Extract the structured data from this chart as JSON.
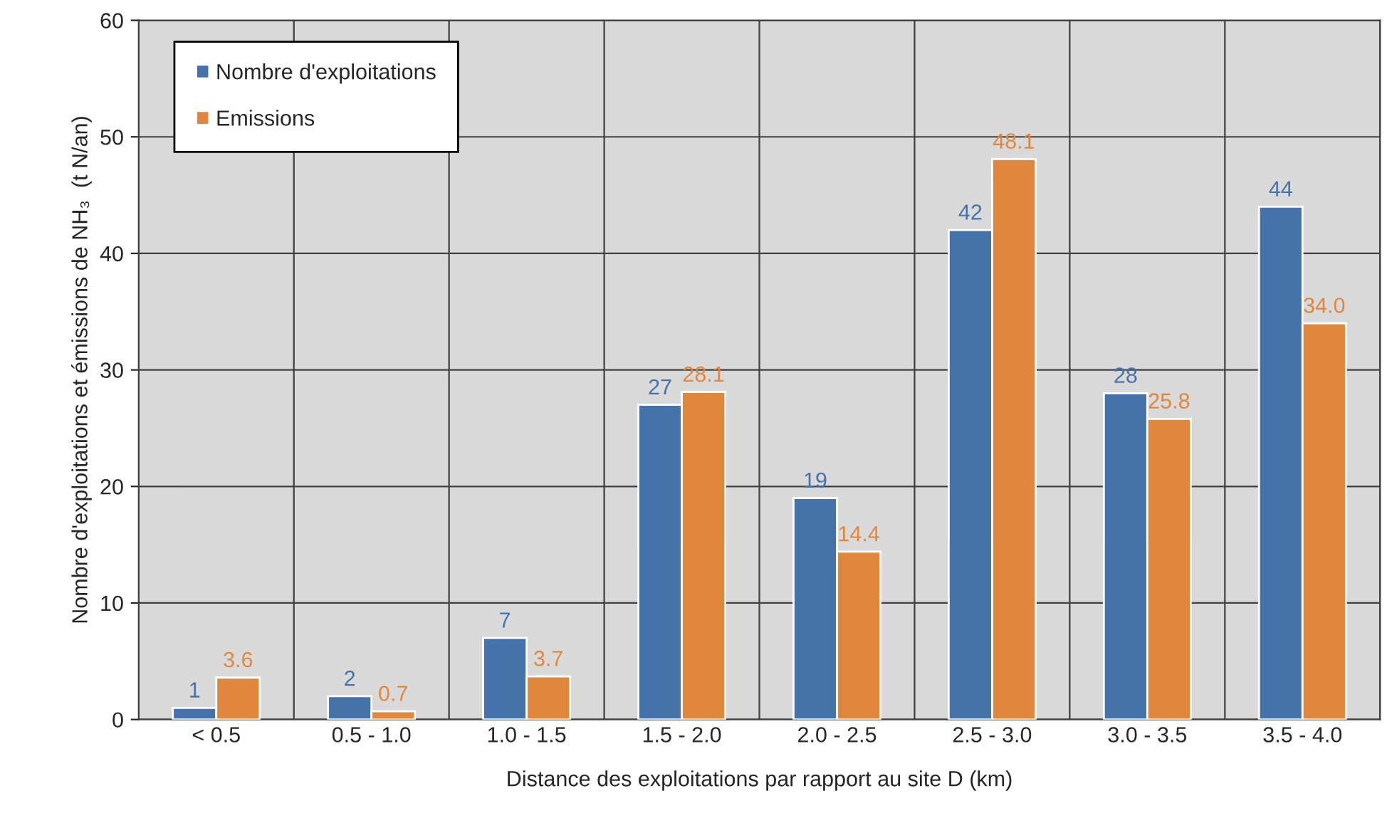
{
  "chart_data": {
    "type": "bar",
    "xlabel": "Distance des exploitations par rapport au site D (km)",
    "ylabel": "Nombre d'exploitations et émissions de NH₃  (t N/an)",
    "categories": [
      "< 0.5",
      "0.5 - 1.0",
      "1.0 - 1.5",
      "1.5 - 2.0",
      "2.0 - 2.5",
      "2.5 - 3.0",
      "3.0 - 3.5",
      "3.5 - 4.0"
    ],
    "series": [
      {
        "name": "Nombre d'exploitations",
        "color": "#4672aa",
        "values": [
          1,
          2,
          7,
          27,
          19,
          42,
          28,
          44
        ],
        "value_labels": [
          "1",
          "2",
          "7",
          "27",
          "19",
          "42",
          "28",
          "44"
        ]
      },
      {
        "name": "Emissions",
        "color": "#e0873d",
        "values": [
          3.6,
          0.7,
          3.7,
          28.1,
          14.4,
          48.1,
          25.8,
          34.0
        ],
        "value_labels": [
          "3.6",
          "0.7",
          "3.7",
          "28.1",
          "14.4",
          "48.1",
          "25.8",
          "34.0"
        ]
      }
    ],
    "ylim": [
      0,
      60
    ],
    "yticks": [
      0,
      10,
      20,
      30,
      40,
      50,
      60
    ],
    "grid": true,
    "legend": "top left"
  }
}
